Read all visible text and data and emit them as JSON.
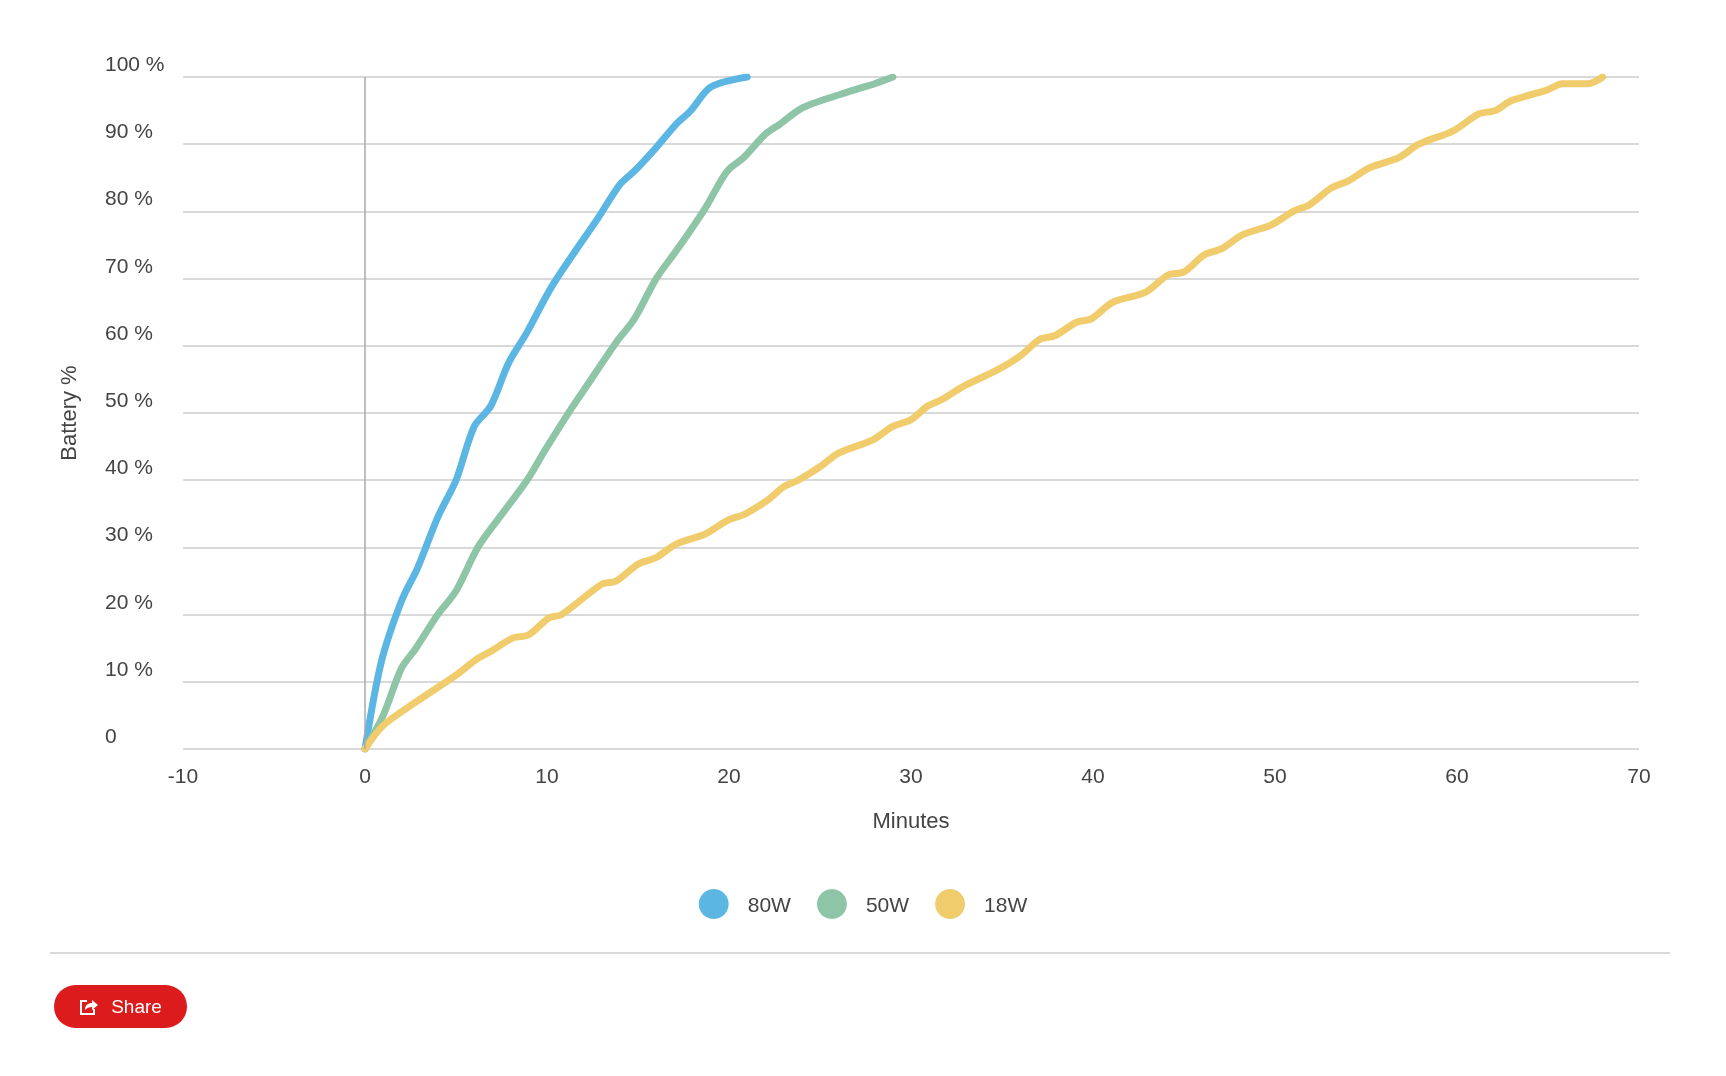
{
  "chart_data": {
    "type": "line",
    "xlabel": "Minutes",
    "ylabel": "Battery %",
    "xlim": [
      -10,
      70
    ],
    "xticks": [
      -10,
      0,
      10,
      20,
      30,
      40,
      50,
      60,
      70
    ],
    "ylim": [
      0,
      100
    ],
    "yticks": [
      0,
      {
        "value": 10,
        "label": "10 %"
      },
      {
        "value": 20,
        "label": "20 %"
      },
      {
        "value": 30,
        "label": "30 %"
      },
      {
        "value": 40,
        "label": "40 %"
      },
      {
        "value": 50,
        "label": "50 %"
      },
      {
        "value": 60,
        "label": "60 %"
      },
      {
        "value": 70,
        "label": "70 %"
      },
      {
        "value": 80,
        "label": "80 %"
      },
      {
        "value": 90,
        "label": "90 %"
      },
      {
        "value": 100,
        "label": "100 %"
      }
    ],
    "grid": "y",
    "legend": "bottom",
    "marker": "none",
    "line_style": "solid",
    "ref_lines": [
      {
        "axis": "x",
        "value": 0,
        "color": "#aaaaaa"
      }
    ],
    "annotations": [
      "Share"
    ],
    "series": [
      {
        "name": "80W",
        "color": "#5bb6e4",
        "x": [
          0,
          0.9,
          2,
          2.9,
          4,
          5,
          6,
          6.9,
          7.9,
          8.9,
          10.3,
          12.8,
          14,
          14.8,
          16,
          17.1,
          17.9,
          19,
          21
        ],
        "values": [
          0,
          13,
          22,
          27,
          34.5,
          40,
          48,
          51,
          57.5,
          62,
          69,
          79,
          84,
          86,
          89.5,
          93,
          95,
          98.5,
          100
        ]
      },
      {
        "name": "50W",
        "color": "#8ec5a6",
        "x": [
          0,
          1,
          2,
          2.8,
          4,
          5,
          6.2,
          7.4,
          8.9,
          9.9,
          11.3,
          12.3,
          13.8,
          14.8,
          16,
          17.2,
          18.7,
          19.9,
          20.8,
          22,
          22.8,
          24.1,
          26.8,
          28,
          29
        ],
        "values": [
          0,
          5,
          12,
          15,
          20,
          23.5,
          30,
          34.5,
          40,
          44.5,
          50.5,
          54.5,
          60.5,
          64,
          70,
          74.5,
          80.5,
          86,
          88,
          91.5,
          93,
          95.5,
          98,
          99,
          100
        ]
      },
      {
        "name": "18W",
        "color": "#f1cc6c",
        "x": [
          0,
          1,
          2.8,
          5,
          6.2,
          6.9,
          8.1,
          9,
          10.1,
          10.8,
          13,
          13.8,
          15,
          16,
          17.1,
          18.7,
          19.9,
          20.9,
          22.1,
          23,
          23.8,
          25,
          26,
          27.9,
          29,
          30,
          30.9,
          31.7,
          32.9,
          34.8,
          36,
          37.1,
          37.9,
          39.1,
          39.9,
          41.1,
          42.9,
          44.1,
          45,
          46.1,
          47.1,
          48.2,
          49.8,
          51,
          51.9,
          53.1,
          54,
          55.2,
          56.8,
          57.9,
          59.8,
          61.2,
          62.1,
          63,
          64.9,
          65.8,
          67.2,
          68
        ],
        "values": [
          0,
          3.5,
          7,
          11,
          13.5,
          14.5,
          16.5,
          17,
          19.5,
          20,
          24.5,
          25,
          27.5,
          28.5,
          30.5,
          32,
          34,
          35,
          37,
          39,
          40,
          42,
          44,
          46,
          48,
          49,
          51,
          52,
          54,
          56.5,
          58.5,
          61,
          61.5,
          63.5,
          64,
          66.5,
          68,
          70.5,
          71,
          73.5,
          74.5,
          76.5,
          78,
          80,
          81,
          83.5,
          84.5,
          86.5,
          88,
          90,
          92,
          94.5,
          95,
          96.5,
          98,
          99,
          99,
          100
        ]
      }
    ]
  }
}
